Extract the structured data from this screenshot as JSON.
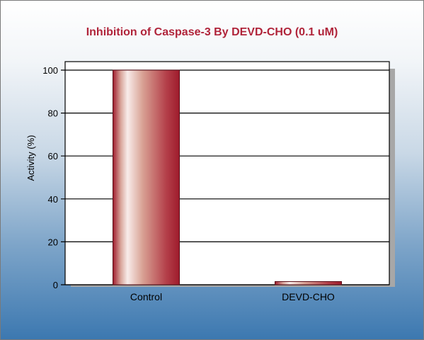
{
  "chart_data": {
    "type": "bar",
    "title": "Inhibition of Caspase-3 By DEVD-CHO (0.1 uM)",
    "xlabel": "",
    "ylabel": "Activity (%)",
    "categories": [
      "Control",
      "DEVD-CHO"
    ],
    "values": [
      100,
      1.5
    ],
    "ylim": [
      0,
      100
    ],
    "yticks": [
      "0",
      "20",
      "40",
      "60",
      "80",
      "100"
    ],
    "grid": true,
    "colors": {
      "title": "#b0243a",
      "bar_dark": "#9e1b2c",
      "bar_light": "#f8ecea"
    }
  }
}
